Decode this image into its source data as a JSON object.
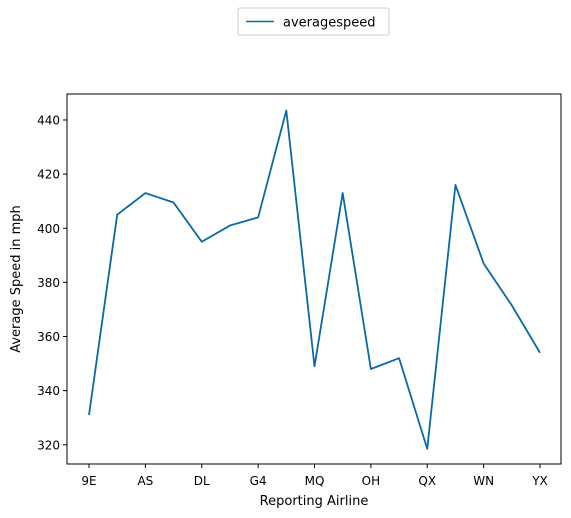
{
  "chart_data": {
    "type": "line",
    "categories": [
      "9E",
      "",
      "AS",
      "",
      "DL",
      "",
      "G4",
      "",
      "MQ",
      "",
      "OH",
      "",
      "QX",
      "",
      "WN",
      "",
      "YX"
    ],
    "series": [
      {
        "name": "averagespeed",
        "values": [
          331,
          405,
          413,
          409.5,
          395,
          401,
          404,
          443.5,
          349,
          413,
          348,
          352,
          318.5,
          416,
          387,
          371.5,
          354
        ]
      }
    ],
    "xlabel": "Reporting Airline",
    "ylabel": "Average Speed in mph",
    "ylim": [
      312.9,
      449.6
    ],
    "yticks": [
      320,
      340,
      360,
      380,
      400,
      420,
      440
    ],
    "grid": false,
    "legend_position": "top-center",
    "colors": {
      "series": "#0b6aa6"
    }
  }
}
